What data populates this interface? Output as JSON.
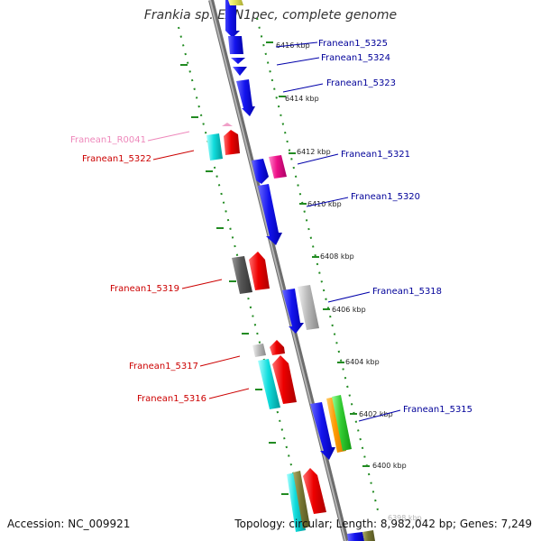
{
  "title": "Frankia sp. EAN1pec, complete genome",
  "accession": "Accession: NC_009921",
  "topology": "Topology: circular; Length: 8,982,042 bp; Genes: 7,249",
  "colors": {
    "backbone": "#8c8c8c",
    "forward_label": "#000099",
    "reverse_label": "#cc0000",
    "rna_label": "#ee88bb",
    "tick": "#228b22"
  },
  "kbp_labels": [
    "6416 kbp",
    "6414 kbp",
    "6412 kbp",
    "6410 kbp",
    "6408 kbp",
    "6406 kbp",
    "6404 kbp",
    "6402 kbp",
    "6400 kbp",
    "6398 kbp"
  ],
  "forward_genes": [
    "Franean1_5325",
    "Franean1_5324",
    "Franean1_5323",
    "Franean1_5321",
    "Franean1_5320",
    "Franean1_5318",
    "Franean1_5315"
  ],
  "reverse_genes": [
    "Franean1_R0041",
    "Franean1_5322",
    "Franean1_5319",
    "Franean1_5317",
    "Franean1_5316"
  ]
}
